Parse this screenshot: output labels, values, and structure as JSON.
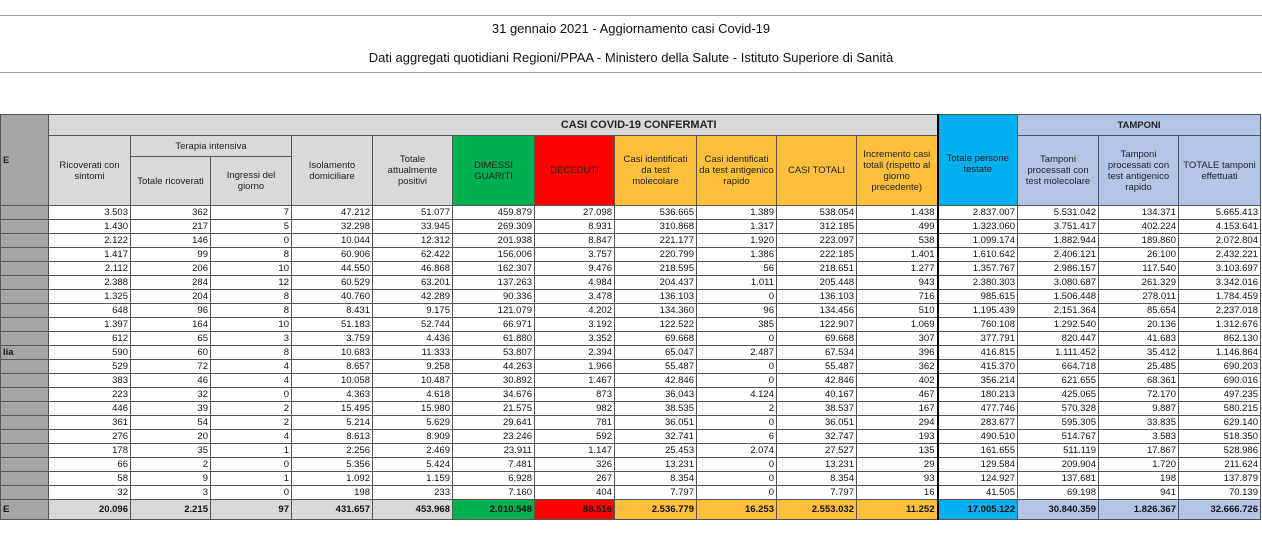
{
  "header": {
    "title": "31 gennaio 2021 - Aggiornamento casi Covid-19",
    "subtitle": "Dati aggregati quotidiani Regioni/PPAA - Ministero della Salute - Istituto Superiore di Sanità"
  },
  "table": {
    "region_header": "E",
    "band_confermati": "CASI COVID-19 CONFERMATI",
    "band_tamponi": "TAMPONI",
    "terapia_intensiva": "Terapia intensiva",
    "columns": [
      "Ricoverati con sintomi",
      "Totale ricoverati",
      "Ingressi del giorno",
      "Isolamento domiciliare",
      "Totale attualmente positivi",
      "DIMESSI GUARITI",
      "DECEDUTI",
      "Casi identificati da test molecolare",
      "Casi identificati da test antigenico rapido",
      "CASI TOTALI",
      "Incremento casi totali (rispetto al giorno precedente)",
      "Totale persone testate",
      "Tamponi processati con test molecolare",
      "Tamponi processati con test antigenico rapido",
      "TOTALE tamponi effettuati"
    ],
    "column_colors": [
      "#ffffff",
      "#ffffff",
      "#ffffff",
      "#ffffff",
      "#ffffff",
      "#00b050",
      "#ff0000",
      "#fdbf3c",
      "#fdbf3c",
      "#fdbf3c",
      "#fdbf3c",
      "#00b0f0",
      "#b4c6e7",
      "#b4c6e7",
      "#b4c6e7"
    ],
    "rows": [
      {
        "region": "",
        "values": [
          "3.503",
          "362",
          "7",
          "47.212",
          "51.077",
          "459.879",
          "27.098",
          "536.665",
          "1.389",
          "538.054",
          "1.438",
          "2.837.007",
          "5.531.042",
          "134.371",
          "5.665.413"
        ]
      },
      {
        "region": "",
        "values": [
          "1.430",
          "217",
          "5",
          "32.298",
          "33.945",
          "269.309",
          "8.931",
          "310.868",
          "1.317",
          "312.185",
          "499",
          "1.323.060",
          "3.751.417",
          "402.224",
          "4.153.641"
        ]
      },
      {
        "region": "",
        "values": [
          "2.122",
          "146",
          "0",
          "10.044",
          "12.312",
          "201.938",
          "8.847",
          "221.177",
          "1.920",
          "223.097",
          "538",
          "1.099.174",
          "1.882.944",
          "189.860",
          "2.072.804"
        ]
      },
      {
        "region": "",
        "values": [
          "1.417",
          "99",
          "8",
          "60.906",
          "62.422",
          "156.006",
          "3.757",
          "220.799",
          "1.386",
          "222.185",
          "1.401",
          "1.610.642",
          "2.406.121",
          "26.100",
          "2.432.221"
        ]
      },
      {
        "region": "",
        "values": [
          "2.112",
          "206",
          "10",
          "44.550",
          "46.868",
          "162.307",
          "9.476",
          "218.595",
          "56",
          "218.651",
          "1.277",
          "1.357.767",
          "2.986.157",
          "117.540",
          "3.103.697"
        ]
      },
      {
        "region": "",
        "values": [
          "2.388",
          "284",
          "12",
          "60.529",
          "63.201",
          "137.263",
          "4.984",
          "204.437",
          "1.011",
          "205.448",
          "943",
          "2.380.303",
          "3.080.687",
          "261.329",
          "3.342.016"
        ]
      },
      {
        "region": "",
        "values": [
          "1.325",
          "204",
          "8",
          "40.760",
          "42.289",
          "90.336",
          "3.478",
          "136.103",
          "0",
          "136.103",
          "716",
          "985.615",
          "1.506.448",
          "278.011",
          "1.784.459"
        ]
      },
      {
        "region": "",
        "values": [
          "648",
          "96",
          "8",
          "8.431",
          "9.175",
          "121.079",
          "4.202",
          "134.360",
          "96",
          "134.456",
          "510",
          "1.195.439",
          "2.151.364",
          "85.654",
          "2.237.018"
        ]
      },
      {
        "region": "",
        "values": [
          "1.397",
          "164",
          "10",
          "51.183",
          "52.744",
          "66.971",
          "3.192",
          "122.522",
          "385",
          "122.907",
          "1.069",
          "760.108",
          "1.292.540",
          "20.136",
          "1.312.676"
        ]
      },
      {
        "region": "",
        "values": [
          "612",
          "65",
          "3",
          "3.759",
          "4.436",
          "61.880",
          "3.352",
          "69.668",
          "0",
          "69.668",
          "307",
          "377.791",
          "820.447",
          "41.683",
          "862.130"
        ]
      },
      {
        "region": "lia",
        "values": [
          "590",
          "60",
          "8",
          "10.683",
          "11.333",
          "53.807",
          "2.394",
          "65.047",
          "2.487",
          "67.534",
          "396",
          "416.815",
          "1.111.452",
          "35.412",
          "1.146.864"
        ]
      },
      {
        "region": "",
        "values": [
          "529",
          "72",
          "4",
          "8.657",
          "9.258",
          "44.263",
          "1.966",
          "55.487",
          "0",
          "55.487",
          "362",
          "415.370",
          "664.718",
          "25.485",
          "690.203"
        ]
      },
      {
        "region": "",
        "values": [
          "383",
          "46",
          "4",
          "10.058",
          "10.487",
          "30.892",
          "1.467",
          "42.846",
          "0",
          "42.846",
          "402",
          "356.214",
          "621.655",
          "68.361",
          "690.016"
        ]
      },
      {
        "region": "",
        "values": [
          "223",
          "32",
          "0",
          "4.363",
          "4.618",
          "34.676",
          "873",
          "36.043",
          "4.124",
          "40.167",
          "467",
          "180.213",
          "425.065",
          "72.170",
          "497.235"
        ]
      },
      {
        "region": "",
        "values": [
          "446",
          "39",
          "2",
          "15.495",
          "15.980",
          "21.575",
          "982",
          "38.535",
          "2",
          "38.537",
          "167",
          "477.746",
          "570.328",
          "9.887",
          "580.215"
        ]
      },
      {
        "region": "",
        "values": [
          "361",
          "54",
          "2",
          "5.214",
          "5.629",
          "29.641",
          "781",
          "36.051",
          "0",
          "36.051",
          "294",
          "283.677",
          "595.305",
          "33.835",
          "629.140"
        ]
      },
      {
        "region": "",
        "values": [
          "276",
          "20",
          "4",
          "8.613",
          "8.909",
          "23.246",
          "592",
          "32.741",
          "6",
          "32.747",
          "193",
          "490.510",
          "514.767",
          "3.583",
          "518.350"
        ]
      },
      {
        "region": "",
        "values": [
          "178",
          "35",
          "1",
          "2.256",
          "2.469",
          "23.911",
          "1.147",
          "25.453",
          "2.074",
          "27.527",
          "135",
          "161.655",
          "511.119",
          "17.867",
          "528.986"
        ]
      },
      {
        "region": "",
        "values": [
          "66",
          "2",
          "0",
          "5.356",
          "5.424",
          "7.481",
          "326",
          "13.231",
          "0",
          "13.231",
          "29",
          "129.584",
          "209.904",
          "1.720",
          "211.624"
        ]
      },
      {
        "region": "",
        "values": [
          "58",
          "9",
          "1",
          "1.092",
          "1.159",
          "6.928",
          "267",
          "8.354",
          "0",
          "8.354",
          "93",
          "124.927",
          "137.681",
          "198",
          "137.879"
        ]
      },
      {
        "region": "",
        "values": [
          "32",
          "3",
          "0",
          "198",
          "233",
          "7.160",
          "404",
          "7.797",
          "0",
          "7.797",
          "16",
          "41.505",
          "69.198",
          "941",
          "70.139"
        ]
      }
    ],
    "total": {
      "region": "E",
      "values": [
        "20.096",
        "2.215",
        "97",
        "431.657",
        "453.968",
        "2.010.548",
        "88.516",
        "2.536.779",
        "16.253",
        "2.553.032",
        "11.252",
        "17.005.122",
        "30.840.359",
        "1.826.367",
        "32.666.726"
      ]
    }
  }
}
